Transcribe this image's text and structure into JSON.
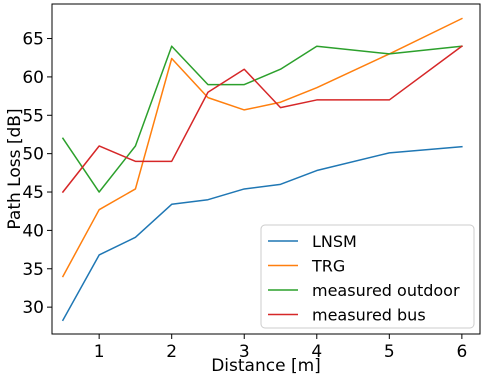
{
  "chart_data": {
    "type": "line",
    "xlabel": "Distance [m]",
    "ylabel": "Path Loss [dB]",
    "xlim": [
      0.35,
      6.25
    ],
    "ylim": [
      26.5,
      69.5
    ],
    "xticks": [
      1,
      2,
      3,
      4,
      5,
      6
    ],
    "yticks": [
      30,
      35,
      40,
      45,
      50,
      55,
      60,
      65
    ],
    "grid": false,
    "legend_position": "lower-right",
    "x": [
      0.5,
      1,
      1.5,
      2,
      2.5,
      3,
      3.5,
      4,
      5,
      6
    ],
    "series": [
      {
        "name": "LNSM",
        "color": "#1f77b4",
        "values": [
          28.3,
          36.8,
          39.1,
          43.4,
          44.0,
          45.4,
          46.0,
          47.8,
          50.1,
          50.9
        ]
      },
      {
        "name": "TRG",
        "color": "#ff7f0e",
        "values": [
          34.0,
          42.7,
          45.4,
          62.4,
          57.3,
          55.7,
          56.7,
          58.6,
          63.0,
          67.6
        ]
      },
      {
        "name": "measured outdoor",
        "color": "#2ca02c",
        "values": [
          52.0,
          45.0,
          51.0,
          64.0,
          59.0,
          59.0,
          61.0,
          64.0,
          63.0,
          64.0
        ]
      },
      {
        "name": "measured bus",
        "color": "#d62728",
        "values": [
          45.0,
          51.0,
          49.0,
          49.0,
          58.0,
          61.0,
          56.0,
          57.0,
          57.0,
          64.0
        ]
      }
    ]
  }
}
